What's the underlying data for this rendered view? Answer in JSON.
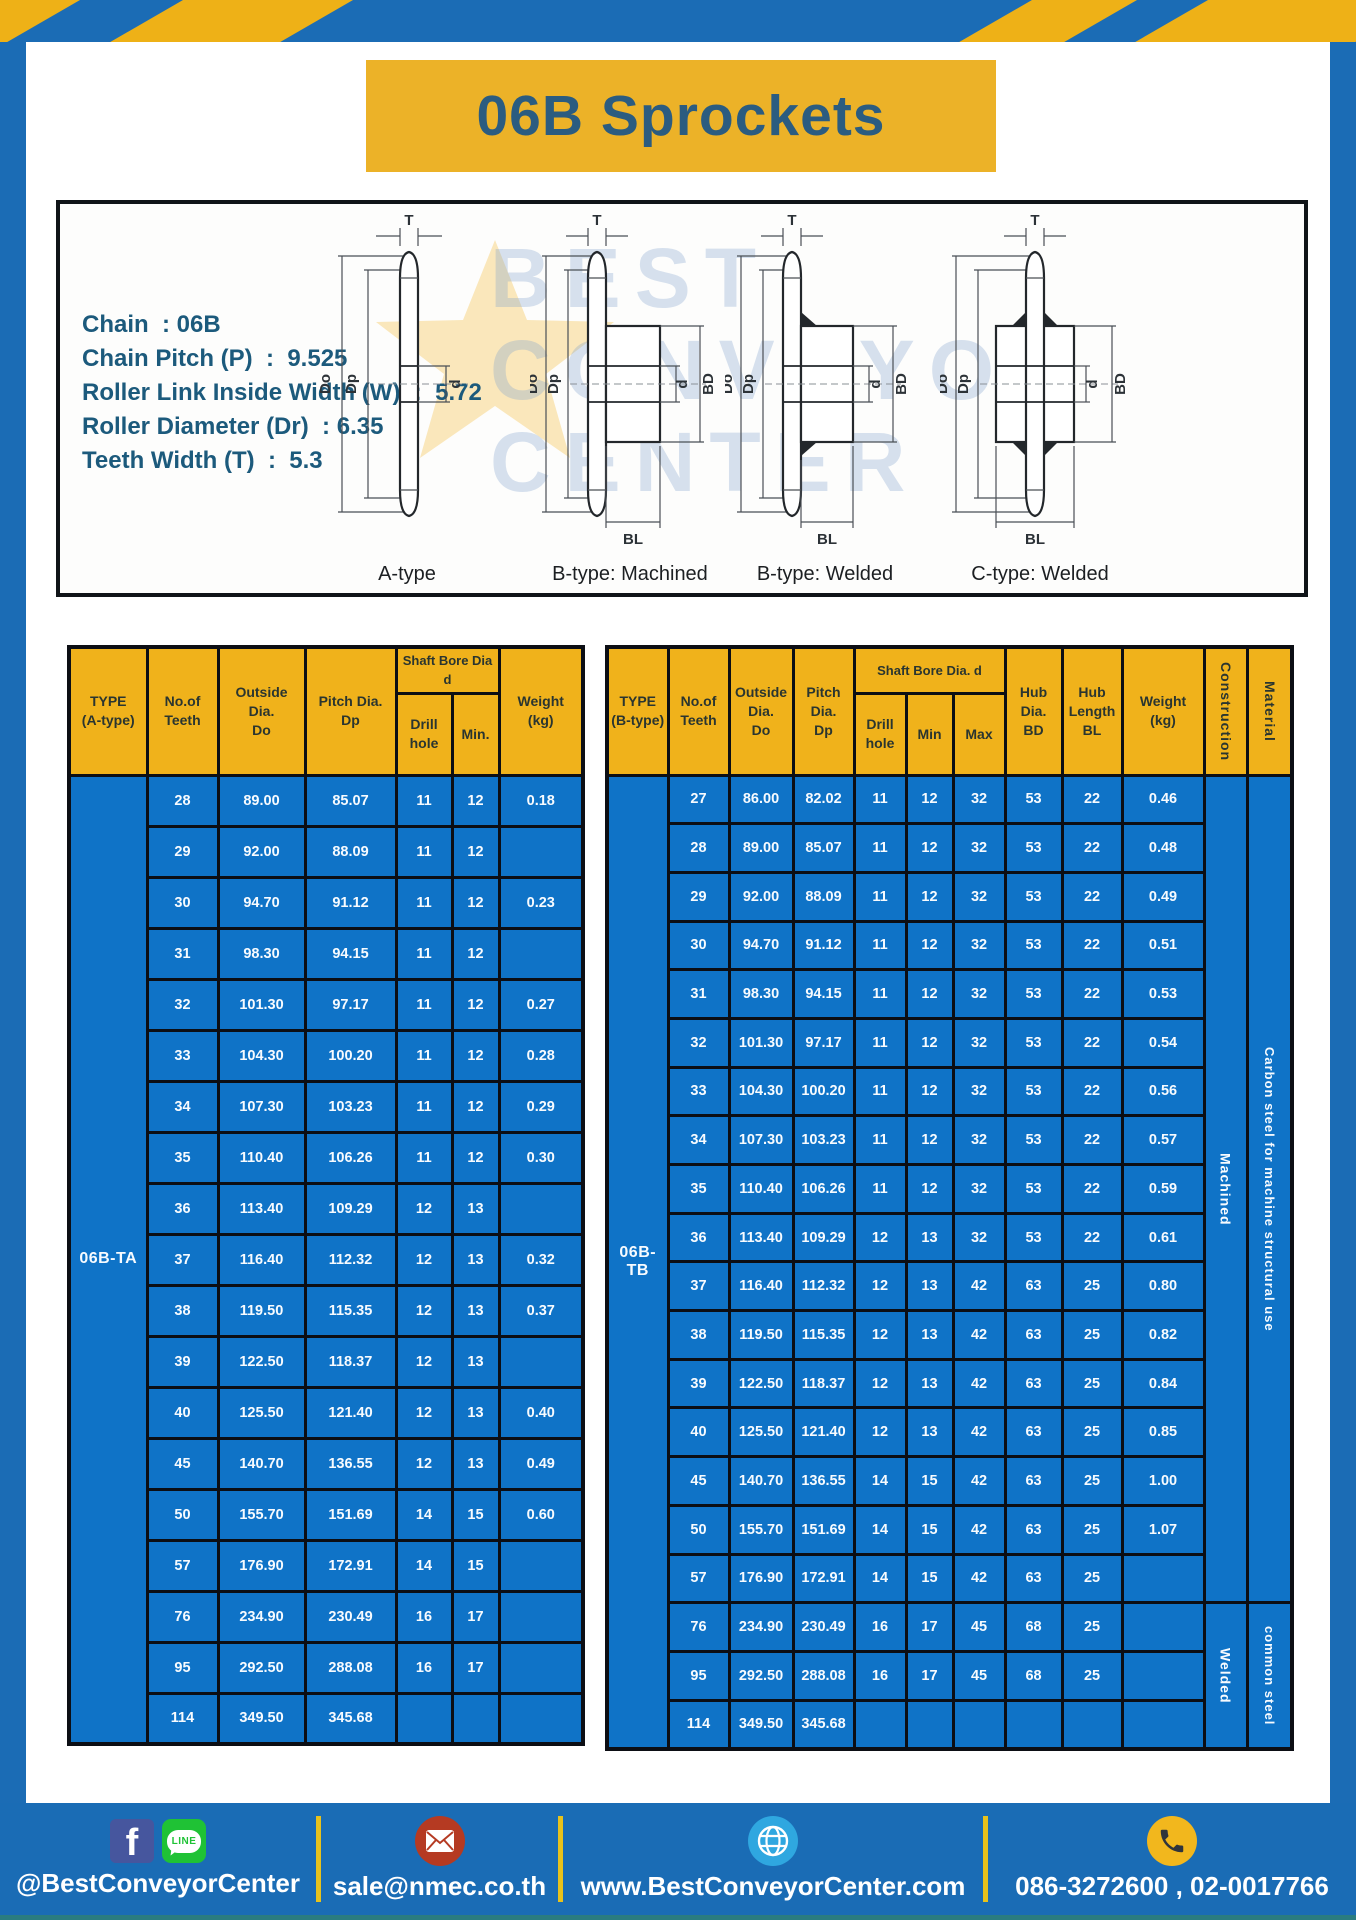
{
  "title": "06B Sprockets",
  "specs": {
    "lines": [
      "Chain  : 06B",
      "Chain Pitch (P)  :  9.525",
      "Roller Link Inside Width (W)  :  5.72",
      "Roller Diameter (Dr)  : 6.35",
      "Teeth Width (T)  :  5.3"
    ]
  },
  "watermark": {
    "line1": "BEST",
    "line2": "CONVEYOR",
    "line3": "CENTER"
  },
  "diagrams": {
    "dims": {
      "t": "T",
      "outside": "Do",
      "pitch": "Dp",
      "bore": "d",
      "hub_dia": "BD",
      "hub_len": "BL"
    },
    "items": [
      {
        "label": "A-type"
      },
      {
        "label": "B-type: Machined"
      },
      {
        "label": "B-type: Welded"
      },
      {
        "label": "C-type: Welded"
      }
    ]
  },
  "tables": {
    "left": {
      "type_label": "06B-TA",
      "headers": {
        "type": "TYPE\n(A-type)",
        "teeth": "No.of\nTeeth",
        "outside": "Outside\nDia.\nDo",
        "pitch": "Pitch Dia.\nDp",
        "shaft_bore": "Shaft Bore Dia d",
        "drill": "Drill hole",
        "min": "Min.",
        "weight": "Weight\n(kg)"
      },
      "rows": [
        [
          "28",
          "89.00",
          "85.07",
          "11",
          "12",
          "0.18"
        ],
        [
          "29",
          "92.00",
          "88.09",
          "11",
          "12",
          ""
        ],
        [
          "30",
          "94.70",
          "91.12",
          "11",
          "12",
          "0.23"
        ],
        [
          "31",
          "98.30",
          "94.15",
          "11",
          "12",
          ""
        ],
        [
          "32",
          "101.30",
          "97.17",
          "11",
          "12",
          "0.27"
        ],
        [
          "33",
          "104.30",
          "100.20",
          "11",
          "12",
          "0.28"
        ],
        [
          "34",
          "107.30",
          "103.23",
          "11",
          "12",
          "0.29"
        ],
        [
          "35",
          "110.40",
          "106.26",
          "11",
          "12",
          "0.30"
        ],
        [
          "36",
          "113.40",
          "109.29",
          "12",
          "13",
          ""
        ],
        [
          "37",
          "116.40",
          "112.32",
          "12",
          "13",
          "0.32"
        ],
        [
          "38",
          "119.50",
          "115.35",
          "12",
          "13",
          "0.37"
        ],
        [
          "39",
          "122.50",
          "118.37",
          "12",
          "13",
          ""
        ],
        [
          "40",
          "125.50",
          "121.40",
          "12",
          "13",
          "0.40"
        ],
        [
          "45",
          "140.70",
          "136.55",
          "12",
          "13",
          "0.49"
        ],
        [
          "50",
          "155.70",
          "151.69",
          "14",
          "15",
          "0.60"
        ],
        [
          "57",
          "176.90",
          "172.91",
          "14",
          "15",
          ""
        ],
        [
          "76",
          "234.90",
          "230.49",
          "16",
          "17",
          ""
        ],
        [
          "95",
          "292.50",
          "288.08",
          "16",
          "17",
          ""
        ],
        [
          "114",
          "349.50",
          "345.68",
          "",
          "",
          ""
        ]
      ]
    },
    "right": {
      "type_label": "06B-TB",
      "headers": {
        "type": "TYPE\n(B-type)",
        "teeth": "No.of\nTeeth",
        "outside": "Outside\nDia.\nDo",
        "pitch": "Pitch\nDia.\nDp",
        "shaft_bore": "Shaft Bore Dia. d",
        "drill": "Drill hole",
        "min": "Min",
        "max": "Max",
        "hub_dia": "Hub\nDia.\nBD",
        "hub_len": "Hub\nLength\nBL",
        "weight": "Weight\n(kg)",
        "construction": "Construction",
        "material": "Material"
      },
      "rows": [
        [
          "27",
          "86.00",
          "82.02",
          "11",
          "12",
          "32",
          "53",
          "22",
          "0.46"
        ],
        [
          "28",
          "89.00",
          "85.07",
          "11",
          "12",
          "32",
          "53",
          "22",
          "0.48"
        ],
        [
          "29",
          "92.00",
          "88.09",
          "11",
          "12",
          "32",
          "53",
          "22",
          "0.49"
        ],
        [
          "30",
          "94.70",
          "91.12",
          "11",
          "12",
          "32",
          "53",
          "22",
          "0.51"
        ],
        [
          "31",
          "98.30",
          "94.15",
          "11",
          "12",
          "32",
          "53",
          "22",
          "0.53"
        ],
        [
          "32",
          "101.30",
          "97.17",
          "11",
          "12",
          "32",
          "53",
          "22",
          "0.54"
        ],
        [
          "33",
          "104.30",
          "100.20",
          "11",
          "12",
          "32",
          "53",
          "22",
          "0.56"
        ],
        [
          "34",
          "107.30",
          "103.23",
          "11",
          "12",
          "32",
          "53",
          "22",
          "0.57"
        ],
        [
          "35",
          "110.40",
          "106.26",
          "11",
          "12",
          "32",
          "53",
          "22",
          "0.59"
        ],
        [
          "36",
          "113.40",
          "109.29",
          "12",
          "13",
          "32",
          "53",
          "22",
          "0.61"
        ],
        [
          "37",
          "116.40",
          "112.32",
          "12",
          "13",
          "42",
          "63",
          "25",
          "0.80"
        ],
        [
          "38",
          "119.50",
          "115.35",
          "12",
          "13",
          "42",
          "63",
          "25",
          "0.82"
        ],
        [
          "39",
          "122.50",
          "118.37",
          "12",
          "13",
          "42",
          "63",
          "25",
          "0.84"
        ],
        [
          "40",
          "125.50",
          "121.40",
          "12",
          "13",
          "42",
          "63",
          "25",
          "0.85"
        ],
        [
          "45",
          "140.70",
          "136.55",
          "14",
          "15",
          "42",
          "63",
          "25",
          "1.00"
        ],
        [
          "50",
          "155.70",
          "151.69",
          "14",
          "15",
          "42",
          "63",
          "25",
          "1.07"
        ],
        [
          "57",
          "176.90",
          "172.91",
          "14",
          "15",
          "42",
          "63",
          "25",
          ""
        ],
        [
          "76",
          "234.90",
          "230.49",
          "16",
          "17",
          "45",
          "68",
          "25",
          ""
        ],
        [
          "95",
          "292.50",
          "288.08",
          "16",
          "17",
          "45",
          "68",
          "25",
          ""
        ],
        [
          "114",
          "349.50",
          "345.68",
          "",
          "",
          "",
          "",
          "",
          ""
        ]
      ],
      "construction_groups": [
        {
          "label": "Machined",
          "start": 0,
          "span": 17
        },
        {
          "label": "Welded",
          "start": 17,
          "span": 3
        }
      ],
      "material_groups": [
        {
          "label": "Carbon steel for machine structural use",
          "start": 0,
          "span": 17
        },
        {
          "label": "common steel",
          "start": 17,
          "span": 3
        }
      ]
    }
  },
  "footer": {
    "facebook_letter": "f",
    "line_text": "LINE",
    "social_handle": "@BestConveyorCenter",
    "email": "sale@nmec.co.th",
    "website": "www.BestConveyorCenter.com",
    "phones": "086-3272600 , 02-0017766"
  },
  "colors": {
    "page_blue": "#1b6cb5",
    "cell_blue": "#0f73c7",
    "header_yellow": "#f0b21b",
    "banner_yellow": "#ecb228",
    "stripe_yellow": "#eeb117",
    "title_text": "#2b5c80",
    "spec_text": "#1c5a7c",
    "footer_blue": "#1a6cb5",
    "sep_yellow": "#e8c21c",
    "facebook_blue": "#46569e",
    "line_green": "#1fc235",
    "mail_red": "#b53a22",
    "globe_blue": "#2fa7e0",
    "phone_yellow": "#f2b71d"
  }
}
